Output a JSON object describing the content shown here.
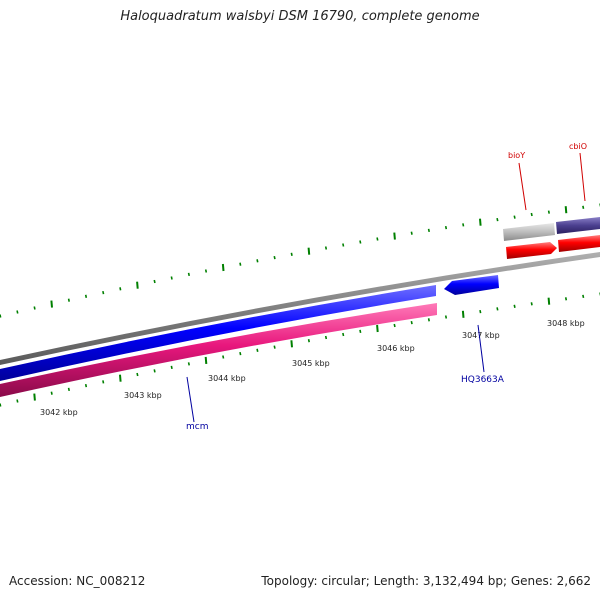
{
  "title": "Haloquadratum walsbyi DSM 16790, complete genome",
  "accession": "Accession: NC_008212",
  "topology": "Topology: circular; Length: 3,132,494 bp; Genes: 2,662",
  "scale_labels": [
    "3042 kbp",
    "3043 kbp",
    "3044 kbp",
    "3045 kbp",
    "3046 kbp",
    "3047 kbp",
    "3048 kbp"
  ],
  "genes": {
    "bioY": "bioY",
    "cbiO": "cbiO",
    "HQ3663A": "HQ3663A",
    "mcm": "mcm"
  },
  "colors": {
    "backbone": "#808080",
    "tick": "#008000",
    "red_feature": "#ff0000",
    "blue_feature": "#0000ff",
    "pink_feature": "#e8177d",
    "gray_feature": "#b8b8b8",
    "purple_feature": "#4b3f8f",
    "label_red": "#d00000",
    "label_blue": "#0000a0"
  }
}
